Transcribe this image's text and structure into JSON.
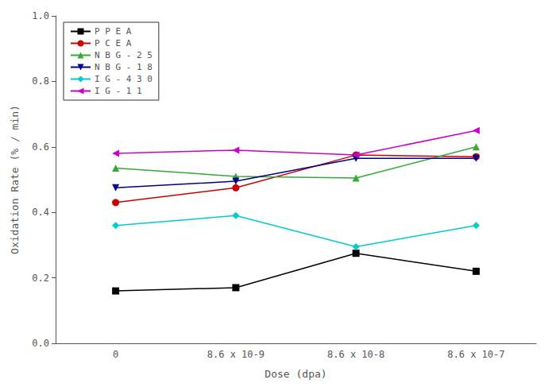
{
  "chart_data": {
    "type": "line",
    "xlabel": "Dose (dpa)",
    "ylabel": "Oxidation Rate (% / min)",
    "categories": [
      "0",
      "8.6 x 10-9",
      "8.6 x 10-8",
      "8.6 x 10-7"
    ],
    "ylim": [
      0.0,
      1.0
    ],
    "yticks": [
      {
        "value": 0.0,
        "label": "0.0"
      },
      0.2,
      0.4,
      0.6,
      0.8,
      {
        "value": 1.0,
        "label": "1.0"
      }
    ],
    "grid": false,
    "legend": "upper left",
    "series": [
      {
        "name": "P P E A",
        "color": "#000000",
        "marker": "square",
        "line_style": "solid",
        "values": [
          0.16,
          0.17,
          0.275,
          0.22
        ]
      },
      {
        "name": "P C E A",
        "color": "#cc0000",
        "marker": "circle",
        "line_style": "solid",
        "values": [
          0.43,
          0.475,
          0.575,
          0.57
        ]
      },
      {
        "name": "N B G - 2 5",
        "color": "#33aa33",
        "marker": "triangle_up",
        "line_style": "solid",
        "values": [
          0.535,
          0.51,
          0.505,
          0.6
        ]
      },
      {
        "name": "N B G - 1 8",
        "color": "#000088",
        "marker": "triangle_down",
        "line_style": "solid",
        "values": [
          0.475,
          0.495,
          0.565,
          0.565
        ]
      },
      {
        "name": "I G - 4 3 0",
        "color": "#00cccc",
        "marker": "diamond",
        "line_style": "solid",
        "values": [
          0.36,
          0.39,
          0.295,
          0.36
        ]
      },
      {
        "name": "I G - 1 1",
        "color": "#cc00cc",
        "marker": "triangle_left",
        "line_style": "solid",
        "values": [
          0.58,
          0.59,
          0.575,
          0.65
        ]
      }
    ]
  }
}
